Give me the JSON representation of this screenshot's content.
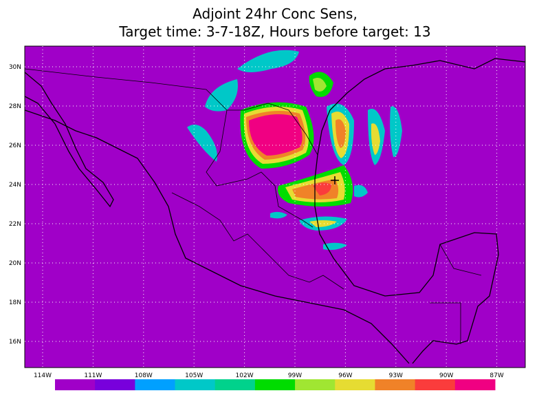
{
  "title": [
    "Adjoint 24hr Conc Sens,",
    "Target time: 3-7-18Z, Hours before target: 13"
  ],
  "lat_labels": [
    "30N",
    "28N",
    "26N",
    "24N",
    "22N",
    "20N",
    "18N",
    "16N"
  ],
  "lon_labels": [
    "114W",
    "111W",
    "108W",
    "105W",
    "102W",
    "99W",
    "96W",
    "93W",
    "90W",
    "87W"
  ],
  "colorbar": {
    "colors": [
      "#a000c8",
      "#7800dc",
      "#00a0ff",
      "#00c8c8",
      "#00d28c",
      "#00dc00",
      "#a0e632",
      "#e6dc32",
      "#f08228",
      "#fa3c3c",
      "#f00082"
    ]
  }
}
